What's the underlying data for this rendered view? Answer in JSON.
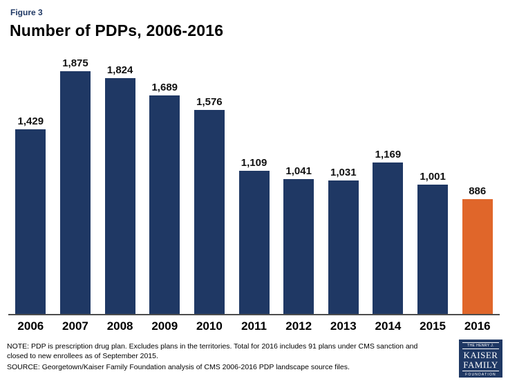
{
  "figure_label": "Figure 3",
  "title": "Number of PDPs, 2006-2016",
  "chart_data": {
    "type": "bar",
    "title": "Number of PDPs, 2006-2016",
    "categories": [
      "2006",
      "2007",
      "2008",
      "2009",
      "2010",
      "2011",
      "2012",
      "2013",
      "2014",
      "2015",
      "2016"
    ],
    "values": [
      1429,
      1875,
      1824,
      1689,
      1576,
      1109,
      1041,
      1031,
      1169,
      1001,
      886
    ],
    "value_labels": [
      "1,429",
      "1,875",
      "1,824",
      "1,689",
      "1,576",
      "1,109",
      "1,041",
      "1,031",
      "1,169",
      "1,001",
      "886"
    ],
    "xlabel": "",
    "ylabel": "",
    "ylim": [
      0,
      2000
    ],
    "grid": false,
    "legend": false,
    "bar_color": "#1f3864",
    "highlight_color": "#e0662a",
    "highlight_index": 10
  },
  "footer": {
    "note_line1": "NOTE: PDP is prescription drug plan. Excludes plans in the territories. Total for 2016 includes 91 plans under CMS sanction and",
    "note_line2": "closed to new enrollees as of September 2015.",
    "source": "SOURCE: Georgetown/Kaiser Family Foundation analysis of CMS 2006-2016 PDP landscape source files."
  },
  "logo": {
    "line1": "THE HENRY J.",
    "line2": "KAISER",
    "line3": "FAMILY",
    "line4": "FOUNDATION"
  }
}
